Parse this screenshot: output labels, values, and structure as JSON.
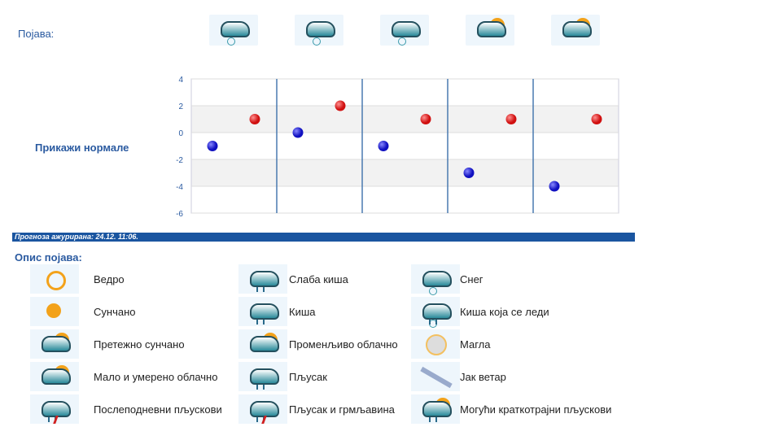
{
  "phenomena_label": "Појава:",
  "forecast_icons": [
    "snow",
    "snow",
    "snow",
    "variable-cloudy",
    "variable-cloudy"
  ],
  "show_normals": "Прикажи нормале",
  "updated": "Прогноза ажурирана:  24.12. 11:06.",
  "legend_title": "Опис појава:",
  "legend": [
    {
      "icon": "clear",
      "label": "Ведро"
    },
    {
      "icon": "light-rain",
      "label": "Слаба киша"
    },
    {
      "icon": "snow",
      "label": "Снег"
    },
    {
      "icon": "sunny",
      "label": "Сунчано"
    },
    {
      "icon": "rain",
      "label": "Киша"
    },
    {
      "icon": "freezing-rain",
      "label": "Киша која се леди"
    },
    {
      "icon": "mostly-sunny",
      "label": "Претежно сунчано"
    },
    {
      "icon": "variable-cloudy",
      "label": "Променљиво облачно"
    },
    {
      "icon": "fog",
      "label": "Магла"
    },
    {
      "icon": "partly-cloudy",
      "label": "Мало и умерено облачно"
    },
    {
      "icon": "shower",
      "label": "Пљусак"
    },
    {
      "icon": "strong-wind",
      "label": "Јак ветар"
    },
    {
      "icon": "afternoon-showers",
      "label": "Послеподневни пљускови"
    },
    {
      "icon": "thunderstorm",
      "label": "Пљусак и грмљавина"
    },
    {
      "icon": "possible-showers",
      "label": "Могући краткотрајни пљускови"
    }
  ],
  "chart_data": {
    "type": "scatter",
    "ylim": [
      -6,
      4
    ],
    "yticks": [
      "4",
      "2",
      "0",
      "-2",
      "-4",
      "-6"
    ],
    "grid": true,
    "series": [
      {
        "color": "#1010c0",
        "values": [
          -1,
          0,
          -1,
          -3,
          -4
        ]
      },
      {
        "color": "#d01010",
        "values": [
          1,
          2,
          1,
          1,
          1
        ]
      }
    ]
  }
}
